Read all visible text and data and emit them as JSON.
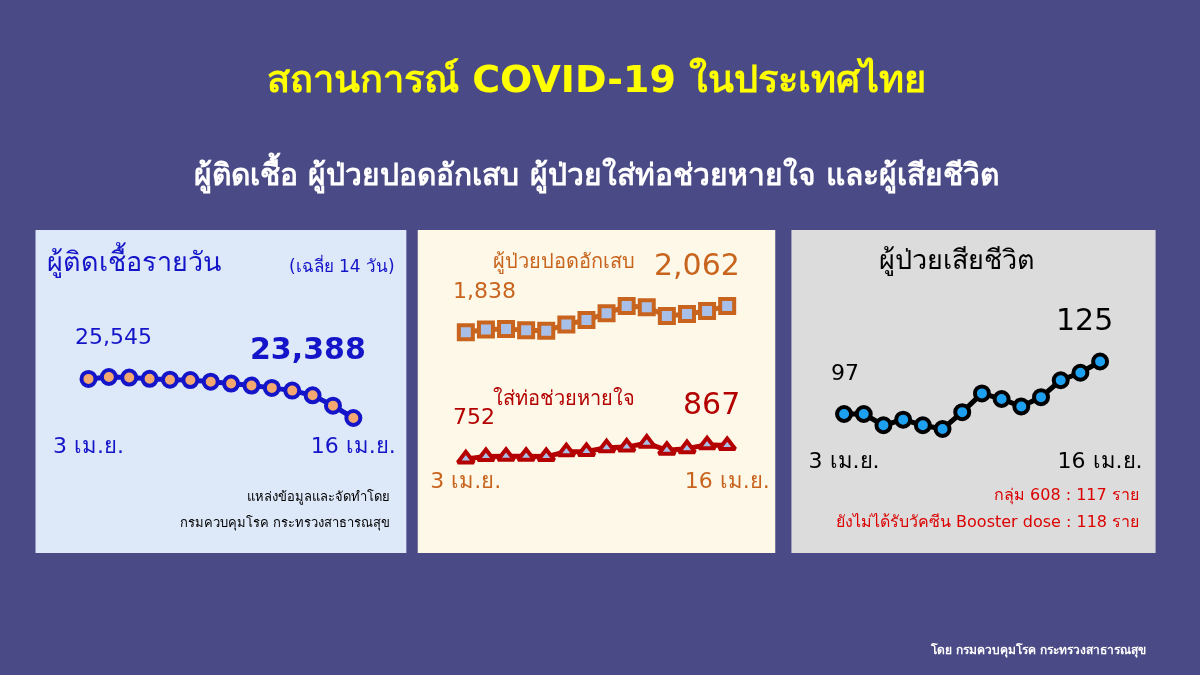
{
  "chart_data": [
    {
      "type": "other",
      "title": "สถานการณ์ COVID-19 ในประเทศไทย",
      "subtitle": "ผู้ติดเชื้อ ผู้ป่วยปอดอักเสบ ผู้ป่วยใส่ท่อช่วยหายใจ และผู้เสียชีวิต",
      "annotations": [
        "โดย กรมควบคุมโรค กระทรวงสาธารณสุข"
      ]
    },
    {
      "type": "line",
      "title": "ผู้ติดเชื้อรายวัน",
      "subtitle": "(เฉลี่ย 14 วัน)",
      "categories": [
        "3 เม.ย.",
        null,
        null,
        null,
        null,
        null,
        null,
        null,
        null,
        null,
        null,
        null,
        null,
        "16 เม.ย."
      ],
      "tick_labels": "x",
      "marker": "circle",
      "annotations": [
        "แหล่งข้อมูลและจัดทำโดย",
        "กรมควบคุมโรค กระทรวงสาธารณสุข"
      ],
      "series": [
        {
          "color": "#1414c8",
          "values": [
            25545,
            25650,
            25620,
            25550,
            25500,
            25480,
            25390,
            25290,
            25180,
            25050,
            24900,
            24640,
            24070,
            23388
          ],
          "value_labels": [
            "25,545",
            null,
            null,
            null,
            null,
            null,
            null,
            null,
            null,
            null,
            null,
            null,
            null,
            "23,388"
          ]
        }
      ]
    },
    {
      "type": "line",
      "categories": [
        "3 เม.ย.",
        null,
        null,
        null,
        null,
        null,
        null,
        null,
        null,
        null,
        null,
        null,
        null,
        "16 เม.ย."
      ],
      "tick_labels": "x",
      "series": [
        {
          "name": "ผู้ป่วยปอดอักเสบ",
          "color": "#c8641e",
          "marker": "square",
          "values": [
            1838,
            1861,
            1866,
            1854,
            1850,
            1905,
            1942,
            2000,
            2062,
            2053,
            1977,
            1995,
            2021,
            2062
          ],
          "value_labels": [
            "1,838",
            null,
            null,
            null,
            null,
            null,
            null,
            null,
            null,
            null,
            null,
            null,
            null,
            "2,062"
          ]
        },
        {
          "name": "ใส่ท่อช่วยหายใจ",
          "color": "#b40000",
          "marker": "triangle",
          "values": [
            752,
            772,
            775,
            775,
            772,
            813,
            816,
            847,
            853,
            887,
            826,
            840,
            874,
            867
          ],
          "value_labels": [
            "752",
            null,
            null,
            null,
            null,
            null,
            null,
            null,
            null,
            null,
            null,
            null,
            null,
            "867"
          ]
        }
      ]
    },
    {
      "type": "line",
      "title": "ผู้ป่วยเสียชีวิต",
      "categories": [
        "3 เม.ย.",
        null,
        null,
        null,
        null,
        null,
        null,
        null,
        null,
        null,
        null,
        null,
        null,
        "16 เม.ย."
      ],
      "tick_labels": "x",
      "marker": "circle",
      "annotations": [
        "กลุ่ม 608 : 117 ราย",
        "ยังไม่ได้รับวัคซีน Booster dose : 118 ราย"
      ],
      "series": [
        {
          "color": "#000000",
          "values": [
            97,
            97,
            91,
            94,
            91,
            89,
            98,
            108,
            105,
            101,
            106,
            115,
            119,
            125
          ],
          "value_labels": [
            "97",
            null,
            null,
            null,
            null,
            null,
            null,
            null,
            null,
            null,
            null,
            null,
            null,
            "125"
          ]
        }
      ]
    }
  ]
}
